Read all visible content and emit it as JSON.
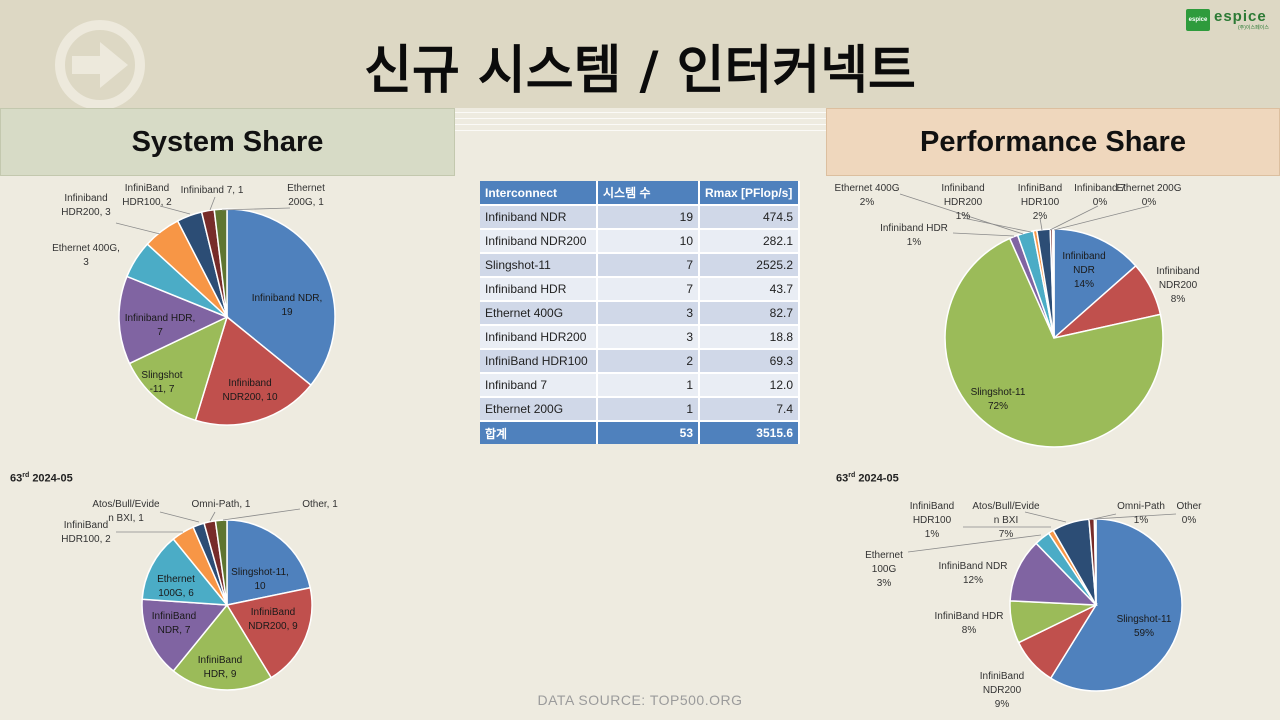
{
  "title": "신규 시스템 / 인터커넥트",
  "logo": {
    "mark": "espice",
    "text": "espice",
    "sub": "(주)이스페이스"
  },
  "headers": {
    "left": "System Share",
    "right": "Performance Share"
  },
  "notes": {
    "left": {
      "num": "63",
      "sup": "rd",
      "date": "2024-05"
    },
    "right": {
      "num": "63",
      "sup": "rd",
      "date": "2024-05"
    }
  },
  "source": "DATA SOURCE: TOP500.ORG",
  "table": {
    "headers": [
      "Interconnect",
      "시스템 수",
      "Rmax [PFlop/s]"
    ],
    "rows": [
      [
        "Infiniband NDR",
        "19",
        "474.5"
      ],
      [
        "Infiniband NDR200",
        "10",
        "282.1"
      ],
      [
        "Slingshot-11",
        "7",
        "2525.2"
      ],
      [
        "Infiniband HDR",
        "7",
        "43.7"
      ],
      [
        "Ethernet 400G",
        "3",
        "82.7"
      ],
      [
        "Infiniband HDR200",
        "3",
        "18.8"
      ],
      [
        "InfiniBand HDR100",
        "2",
        "69.3"
      ],
      [
        "Infiniband 7",
        "1",
        "12.0"
      ],
      [
        "Ethernet 200G",
        "1",
        "7.4"
      ]
    ],
    "total": [
      "합계",
      "53",
      "3515.6"
    ]
  },
  "colors": [
    "#4f81bd",
    "#c0504d",
    "#9bbb59",
    "#8064a2",
    "#4bacc6",
    "#f79646",
    "#2c4d75",
    "#772c2a",
    "#5f7530",
    "#4d3b62"
  ],
  "chart_data": [
    {
      "type": "pie",
      "title": "System Share",
      "categories": [
        "Infiniband NDR",
        "Infiniband NDR200",
        "Slingshot-11",
        "Infiniband HDR",
        "Ethernet 400G",
        "Infiniband HDR200",
        "InfiniBand HDR100",
        "Infiniband 7",
        "Ethernet 200G"
      ],
      "values": [
        19,
        10,
        7,
        7,
        3,
        3,
        2,
        1,
        1
      ],
      "labels": [
        [
          "Infiniband NDR,",
          "19"
        ],
        [
          "Infiniband",
          "NDR200, 10"
        ],
        [
          "Slingshot",
          "-11, 7"
        ],
        [
          "Infiniband HDR,",
          "7"
        ],
        [
          "Ethernet 400G,",
          "3"
        ],
        [
          "Infiniband",
          "HDR200, 3"
        ],
        [
          "InfiniBand",
          "HDR100, 2"
        ],
        [
          "Infiniband 7, 1"
        ],
        [
          "Ethernet",
          "200G, 1"
        ]
      ]
    },
    {
      "type": "pie",
      "title": "Performance Share",
      "categories": [
        "Infiniband NDR",
        "Infiniband NDR200",
        "Slingshot-11",
        "Infiniband HDR",
        "Ethernet 400G",
        "Infiniband HDR200",
        "InfiniBand HDR100",
        "Infiniband 7",
        "Ethernet 200G"
      ],
      "values": [
        474.5,
        282.1,
        2525.2,
        43.7,
        82.7,
        18.8,
        69.3,
        12.0,
        7.4
      ],
      "labels": [
        [
          "Infiniband",
          "NDR",
          "14%"
        ],
        [
          "Infiniband",
          "NDR200",
          "8%"
        ],
        [
          "Slingshot-11",
          "72%"
        ],
        [
          "Infiniband HDR",
          "1%"
        ],
        [
          "Ethernet 400G",
          "2%"
        ],
        [
          "Infiniband",
          "HDR200",
          "1%"
        ],
        [
          "InfiniBand",
          "HDR100",
          "2%"
        ],
        [
          "Infiniband 7",
          "0%"
        ],
        [
          "Ethernet 200G",
          "0%"
        ]
      ]
    },
    {
      "type": "pie",
      "title": "",
      "categories": [
        "Slingshot-11",
        "InfiniBand NDR200",
        "InfiniBand HDR",
        "InfiniBand NDR",
        "Ethernet 100G",
        "InfiniBand HDR100",
        "Atos/Bull/Eviden BXI",
        "Omni-Path",
        "Other"
      ],
      "values": [
        10,
        9,
        9,
        7,
        6,
        2,
        1,
        1,
        1
      ],
      "labels": [
        [
          "Slingshot-11,",
          "10"
        ],
        [
          "InfiniBand",
          "NDR200, 9"
        ],
        [
          "InfiniBand",
          "HDR, 9"
        ],
        [
          "InfiniBand",
          "NDR, 7"
        ],
        [
          "Ethernet",
          "100G, 6"
        ],
        [
          "InfiniBand",
          "HDR100, 2"
        ],
        [
          "Atos/Bull/Evide",
          "n BXI, 1"
        ],
        [
          "Omni-Path, 1"
        ],
        [
          "Other, 1"
        ]
      ]
    },
    {
      "type": "pie",
      "title": "",
      "categories": [
        "Slingshot-11",
        "InfiniBand NDR200",
        "InfiniBand HDR",
        "InfiniBand NDR",
        "Ethernet 100G",
        "InfiniBand HDR100",
        "Atos/Bull/Eviden BXI",
        "Omni-Path",
        "Other"
      ],
      "values": [
        59,
        9,
        8,
        12,
        3,
        1,
        7,
        1,
        0.3
      ],
      "labels": [
        [
          "Slingshot-11",
          "59%"
        ],
        [
          "InfiniBand",
          "NDR200",
          "9%"
        ],
        [
          "InfiniBand HDR",
          "8%"
        ],
        [
          "InfiniBand NDR",
          "12%"
        ],
        [
          "Ethernet",
          "100G",
          "3%"
        ],
        [
          "InfiniBand",
          "HDR100",
          "1%"
        ],
        [
          "Atos/Bull/Evide",
          "n BXI",
          "7%"
        ],
        [
          "Omni-Path",
          "1%"
        ],
        [
          "Other",
          "0%"
        ]
      ]
    }
  ]
}
